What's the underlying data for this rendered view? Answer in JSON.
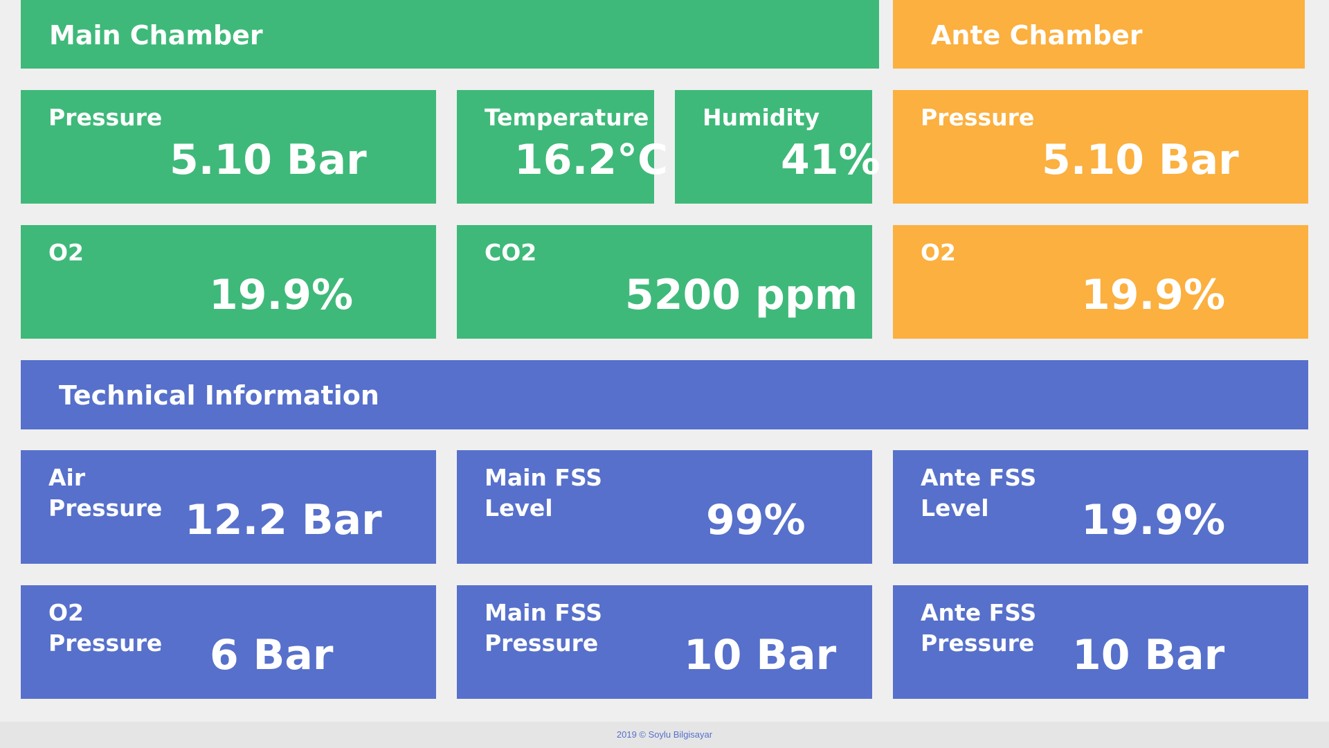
{
  "main_chamber": {
    "title": "Main Chamber",
    "pressure": {
      "label": "Pressure",
      "value": "5.10 Bar"
    },
    "temperature": {
      "label": "Temperature",
      "value": "16.2°C"
    },
    "humidity": {
      "label": "Humidity",
      "value": "41%"
    },
    "o2": {
      "label": "O2",
      "value": "19.9%"
    },
    "co2": {
      "label": "CO2",
      "value": "5200 ppm"
    }
  },
  "ante_chamber": {
    "title": "Ante Chamber",
    "pressure": {
      "label": "Pressure",
      "value": "5.10 Bar"
    },
    "o2": {
      "label": "O2",
      "value": "19.9%"
    }
  },
  "technical": {
    "title": "Technical Information",
    "air_pressure": {
      "label_line1": "Air",
      "label_line2": "Pressure",
      "value": "12.2 Bar"
    },
    "main_fss_level": {
      "label_line1": "Main FSS",
      "label_line2": "Level",
      "value": "99%"
    },
    "ante_fss_level": {
      "label_line1": "Ante FSS",
      "label_line2": "Level",
      "value": "19.9%"
    },
    "o2_pressure": {
      "label_line1": "O2",
      "label_line2": "Pressure",
      "value": "6 Bar"
    },
    "main_fss_pressure": {
      "label_line1": "Main FSS",
      "label_line2": "Pressure",
      "value": "10 Bar"
    },
    "ante_fss_pressure": {
      "label_line1": "Ante FSS",
      "label_line2": "Pressure",
      "value": "10 Bar"
    }
  },
  "footer": {
    "text": "2019 © Soylu Bilgisayar"
  },
  "colors": {
    "main_chamber": "#3eb979",
    "ante_chamber": "#fbb03f",
    "technical": "#5670cb",
    "background": "#efefef"
  }
}
